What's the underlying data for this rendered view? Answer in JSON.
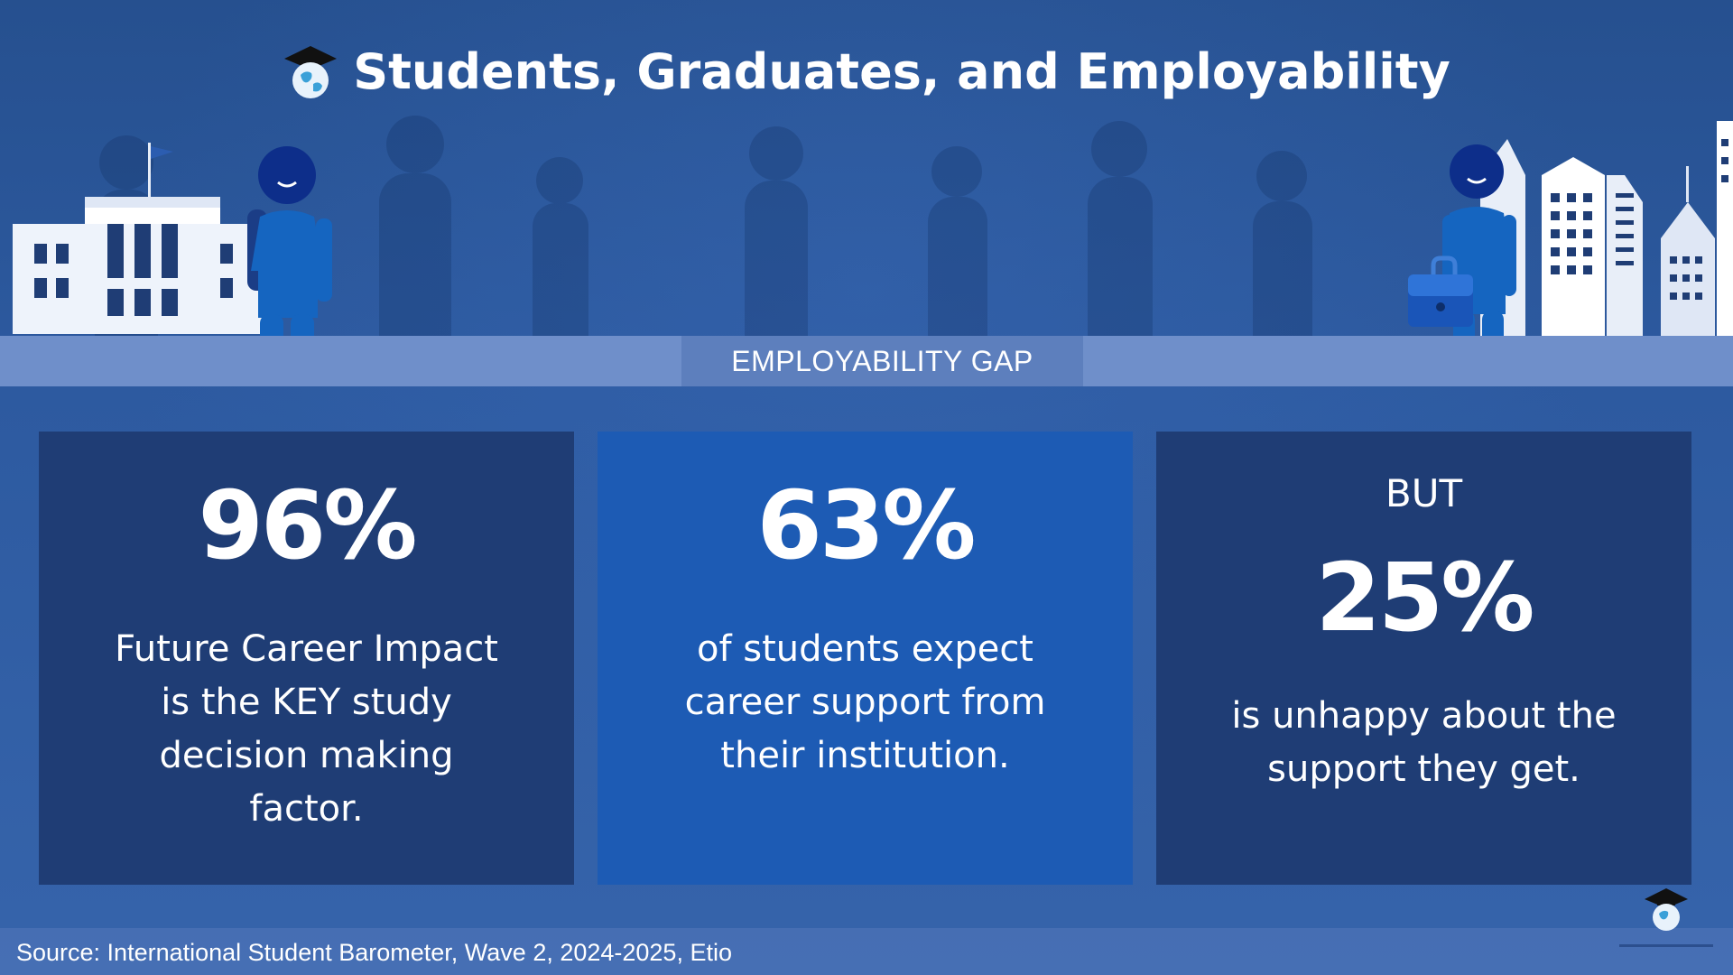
{
  "header": {
    "title": "Students, Graduates, and Employability",
    "icon": "graduation-globe-icon"
  },
  "band": {
    "label": "EMPLOYABILITY GAP"
  },
  "cards": [
    {
      "stat": "96%",
      "lines": [
        "Future Career Impact",
        "is the KEY study",
        "decision making",
        "factor."
      ]
    },
    {
      "stat": "63%",
      "lines": [
        "of students expect",
        "career support from",
        "their institution."
      ]
    },
    {
      "pre": "BUT",
      "stat": "25%",
      "lines": [
        "is unhappy about the",
        "support they get."
      ]
    }
  ],
  "footer": {
    "source": "Source: International Student Barometer, Wave 2, 2024-2025, Etio"
  },
  "colors": {
    "background": "#2f5aa0",
    "card_dark": "#1f3d75",
    "card_mid": "#1d5bb4",
    "band": "#6f8fca",
    "figure": "#1565c0"
  }
}
